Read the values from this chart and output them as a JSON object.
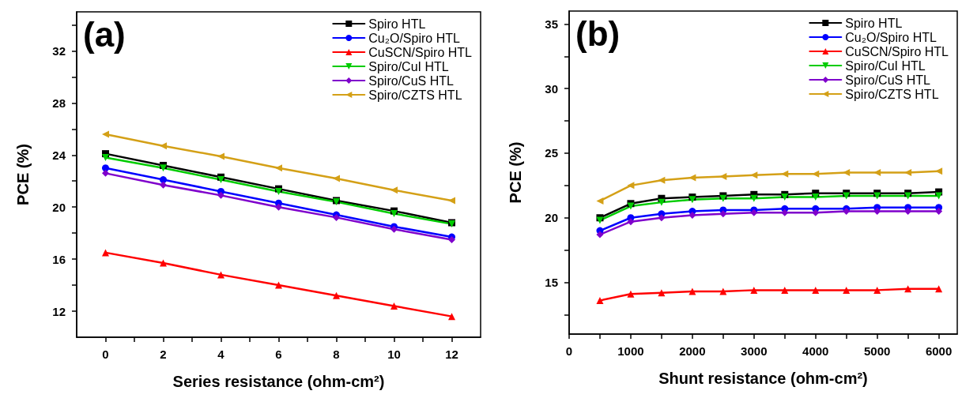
{
  "chart_data": [
    {
      "type": "line",
      "xlabel": "Series resistance (ohm-cm²)",
      "ylabel": "PCE (%)",
      "annotations": [
        "(a)"
      ],
      "x": [
        0,
        2,
        4,
        6,
        8,
        10,
        12
      ],
      "xlim": [
        -1,
        13
      ],
      "xticks": [
        0,
        {
          "value": 1,
          "label": null
        },
        2,
        {
          "value": 3,
          "label": null
        },
        4,
        {
          "value": 5,
          "label": null
        },
        6,
        {
          "value": 7,
          "label": null
        },
        8,
        {
          "value": 9,
          "label": null
        },
        10,
        {
          "value": 11,
          "label": null
        },
        12
      ],
      "ylim": [
        10,
        35
      ],
      "yticks": [
        12,
        {
          "value": 14,
          "label": null
        },
        16,
        {
          "value": 18,
          "label": null
        },
        20,
        {
          "value": 22,
          "label": null
        },
        24,
        {
          "value": 26,
          "label": null
        },
        28,
        {
          "value": 30,
          "label": null
        },
        32,
        {
          "value": 34,
          "label": null
        }
      ],
      "grid": false,
      "legend": "top right",
      "line_style": "solid",
      "series": [
        {
          "name": "Spiro HTL",
          "color": "#000000",
          "marker": "square",
          "values": [
            24.1,
            23.2,
            22.3,
            21.4,
            20.5,
            19.7,
            18.8
          ]
        },
        {
          "name": "Cu₂O/Spiro HTL",
          "color": "#0000ff",
          "marker": "circle",
          "values": [
            23.0,
            22.1,
            21.2,
            20.3,
            19.4,
            18.5,
            17.7
          ]
        },
        {
          "name": "CuSCN/Spiro HTL",
          "color": "#ff0000",
          "marker": "triangle",
          "values": [
            16.5,
            15.7,
            14.8,
            14.0,
            13.2,
            12.4,
            11.6
          ]
        },
        {
          "name": "Spiro/CuI HTL",
          "color": "#00cc00",
          "marker": "triangle-down",
          "values": [
            23.8,
            23.0,
            22.1,
            21.2,
            20.4,
            19.5,
            18.7
          ]
        },
        {
          "name": "Spiro/CuS HTL",
          "color": "#7f00cc",
          "marker": "diamond",
          "values": [
            22.6,
            21.7,
            20.9,
            20.0,
            19.2,
            18.3,
            17.5
          ]
        },
        {
          "name": "Spiro/CZTS HTL",
          "color": "#d4a017",
          "marker": "triangle-left",
          "values": [
            25.6,
            24.7,
            23.9,
            23.0,
            22.2,
            21.3,
            20.5
          ]
        }
      ]
    },
    {
      "type": "line",
      "xlabel": "Shunt resistance (ohm-cm²)",
      "ylabel": "PCE (%)",
      "annotations": [
        "(b)"
      ],
      "x": [
        500,
        1000,
        1500,
        2000,
        2500,
        3000,
        3500,
        4000,
        4500,
        5000,
        5500,
        6000
      ],
      "xlim": [
        0,
        6300
      ],
      "xticks": [
        0,
        {
          "value": 500,
          "label": null
        },
        1000,
        {
          "value": 1500,
          "label": null
        },
        2000,
        {
          "value": 2500,
          "label": null
        },
        3000,
        {
          "value": 3500,
          "label": null
        },
        4000,
        {
          "value": 4500,
          "label": null
        },
        5000,
        {
          "value": 5500,
          "label": null
        },
        6000
      ],
      "ylim": [
        11,
        36
      ],
      "yticks": [
        {
          "value": 12.5,
          "label": null
        },
        15,
        {
          "value": 17.5,
          "label": null
        },
        20,
        {
          "value": 22.5,
          "label": null
        },
        25,
        {
          "value": 27.5,
          "label": null
        },
        30,
        {
          "value": 32.5,
          "label": null
        },
        35
      ],
      "grid": false,
      "legend": "top right",
      "line_style": "solid",
      "series": [
        {
          "name": "Spiro HTL",
          "color": "#000000",
          "marker": "square",
          "values": [
            20.0,
            21.1,
            21.5,
            21.6,
            21.7,
            21.8,
            21.8,
            21.9,
            21.9,
            21.9,
            21.9,
            22.0
          ]
        },
        {
          "name": "Cu₂O/Spiro HTL",
          "color": "#0000ff",
          "marker": "circle",
          "values": [
            19.0,
            20.0,
            20.3,
            20.5,
            20.6,
            20.6,
            20.7,
            20.7,
            20.7,
            20.8,
            20.8,
            20.8
          ]
        },
        {
          "name": "CuSCN/Spiro HTL",
          "color": "#ff0000",
          "marker": "triangle",
          "values": [
            13.6,
            14.1,
            14.2,
            14.3,
            14.3,
            14.4,
            14.4,
            14.4,
            14.4,
            14.4,
            14.5,
            14.5
          ]
        },
        {
          "name": "Spiro/CuI HTL",
          "color": "#00cc00",
          "marker": "triangle-down",
          "values": [
            19.8,
            20.9,
            21.2,
            21.4,
            21.5,
            21.5,
            21.6,
            21.6,
            21.7,
            21.7,
            21.7,
            21.7
          ]
        },
        {
          "name": "Spiro/CuS HTL",
          "color": "#7f00cc",
          "marker": "diamond",
          "values": [
            18.7,
            19.7,
            20.0,
            20.2,
            20.3,
            20.4,
            20.4,
            20.4,
            20.5,
            20.5,
            20.5,
            20.5
          ]
        },
        {
          "name": "Spiro/CZTS HTL",
          "color": "#d4a017",
          "marker": "triangle-left",
          "values": [
            21.3,
            22.5,
            22.9,
            23.1,
            23.2,
            23.3,
            23.4,
            23.4,
            23.5,
            23.5,
            23.5,
            23.6
          ]
        }
      ]
    }
  ]
}
